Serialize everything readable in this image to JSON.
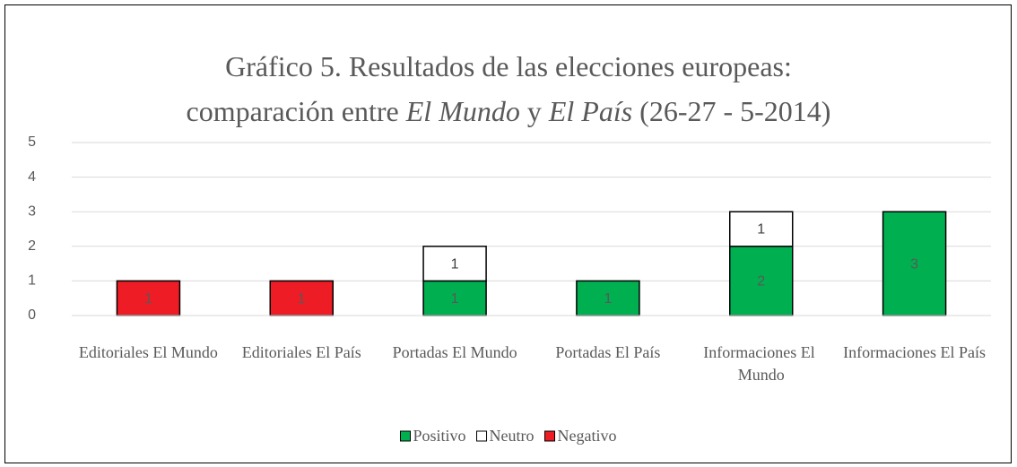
{
  "chart_data": {
    "type": "stacked_bar",
    "title": [
      [
        "Gráfico 5. Resultados de las elecciones europeas:"
      ],
      [
        "comparación entre ",
        {
          "text": "El Mundo",
          "italic": true
        },
        " y ",
        {
          "text": "El País",
          "italic": true
        },
        " (26-27 - 5-2014)"
      ]
    ],
    "categories": [
      "Editoriales El Mundo",
      "Editoriales El País",
      "Portadas El Mundo",
      "Portadas El País",
      "Informaciones El Mundo",
      "Informaciones El País"
    ],
    "series": [
      {
        "name": "Positivo",
        "color": "#00b050",
        "label_color": "#595959",
        "values": [
          null,
          null,
          1,
          1,
          2,
          3
        ]
      },
      {
        "name": "Neutro",
        "color": "#ffffff",
        "label_color": "#404040",
        "values": [
          null,
          null,
          1,
          null,
          1,
          null
        ]
      },
      {
        "name": "Negativo",
        "color": "#ee1c25",
        "label_color": "#595959",
        "values": [
          1,
          1,
          null,
          null,
          null,
          null
        ]
      }
    ],
    "ylim": [
      0,
      5
    ],
    "yticks": [
      0,
      1,
      2,
      3,
      4,
      5
    ],
    "grid": true,
    "legend": "bottom"
  }
}
